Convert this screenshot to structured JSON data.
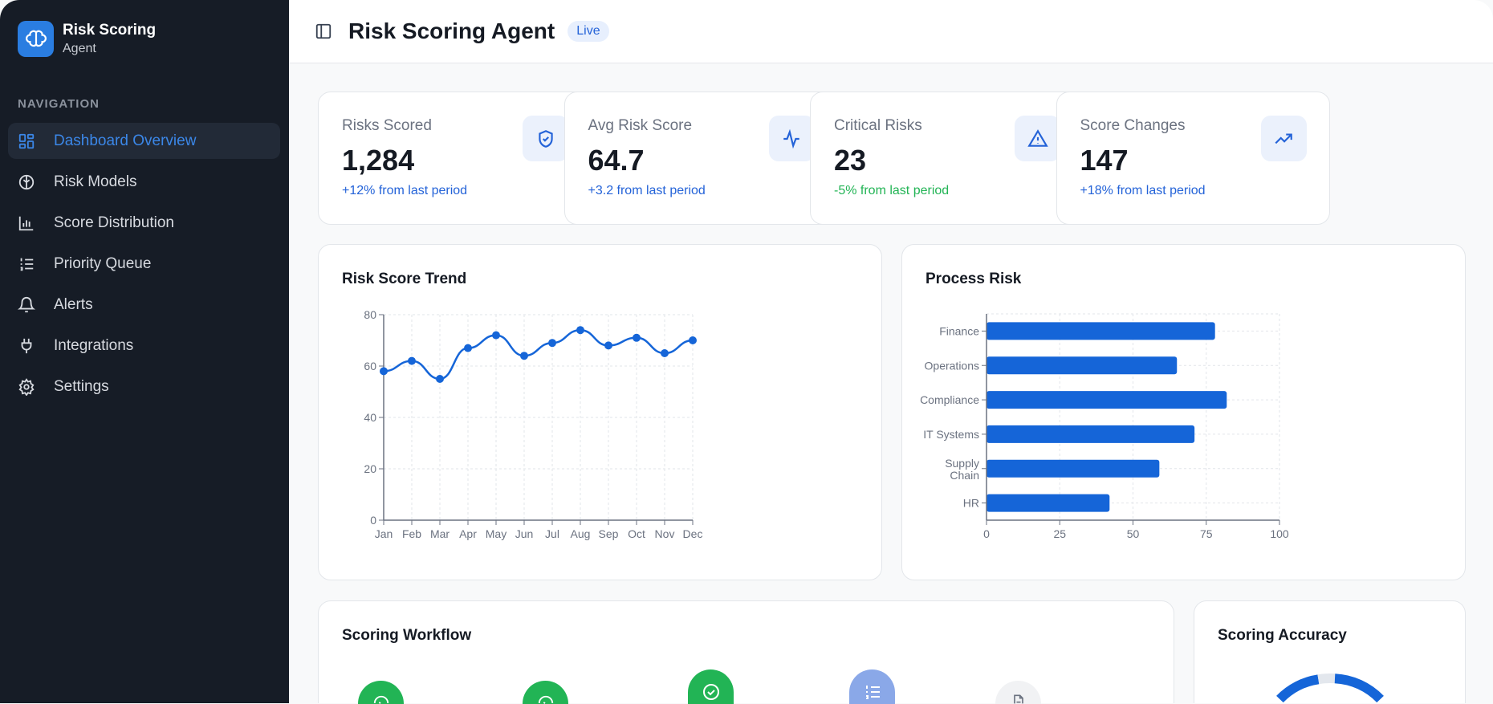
{
  "sidebar": {
    "brand_title": "Risk Scoring",
    "brand_subtitle": "Agent",
    "nav_heading": "NAVIGATION",
    "items": [
      {
        "label": "Dashboard Overview",
        "icon": "dashboard-icon",
        "active": true
      },
      {
        "label": "Risk Models",
        "icon": "brain-icon"
      },
      {
        "label": "Score Distribution",
        "icon": "bar-chart-icon"
      },
      {
        "label": "Priority Queue",
        "icon": "list-ordered-icon"
      },
      {
        "label": "Alerts",
        "icon": "bell-icon"
      },
      {
        "label": "Integrations",
        "icon": "plug-icon"
      },
      {
        "label": "Settings",
        "icon": "gear-icon"
      }
    ]
  },
  "header": {
    "title": "Risk Scoring Agent",
    "badge": "Live"
  },
  "stats": [
    {
      "label": "Risks Scored",
      "value": "1,284",
      "delta": "+12% from last period",
      "icon": "shield-check-icon",
      "delta_color": "#2463d8"
    },
    {
      "label": "Avg Risk Score",
      "value": "64.7",
      "delta": "+3.2 from last period",
      "icon": "activity-icon",
      "delta_color": "#2463d8"
    },
    {
      "label": "Critical Risks",
      "value": "23",
      "delta": "-5% from last period",
      "icon": "alert-triangle-icon",
      "delta_color": "#22b455"
    },
    {
      "label": "Score Changes",
      "value": "147",
      "delta": "+18% from last period",
      "icon": "trending-up-icon",
      "delta_color": "#2463d8"
    }
  ],
  "chart_data": [
    {
      "type": "line",
      "title": "Risk Score Trend",
      "categories": [
        "Jan",
        "Feb",
        "Mar",
        "Apr",
        "May",
        "Jun",
        "Jul",
        "Aug",
        "Sep",
        "Oct",
        "Nov",
        "Dec"
      ],
      "values": [
        58,
        62,
        55,
        67,
        72,
        64,
        69,
        74,
        68,
        71,
        65,
        70
      ],
      "ylim": [
        0,
        80
      ],
      "yticks": [
        0,
        20,
        40,
        60,
        80
      ],
      "grid": true,
      "color": "#1565d8"
    },
    {
      "type": "bar",
      "orientation": "horizontal",
      "title": "Process Risk",
      "categories": [
        "Finance",
        "Operations",
        "Compliance",
        "IT Systems",
        "Supply Chain",
        "HR"
      ],
      "values": [
        78,
        65,
        82,
        71,
        59,
        42
      ],
      "xlim": [
        0,
        100
      ],
      "xticks": [
        0,
        25,
        50,
        75,
        100
      ],
      "grid": true,
      "color": "#1565d8"
    }
  ],
  "workflow": {
    "title": "Scoring Workflow",
    "steps": [
      {
        "status": "complete"
      },
      {
        "status": "complete"
      },
      {
        "status": "complete"
      },
      {
        "status": "active"
      },
      {
        "status": "pending"
      }
    ]
  },
  "accuracy": {
    "title": "Scoring Accuracy"
  }
}
